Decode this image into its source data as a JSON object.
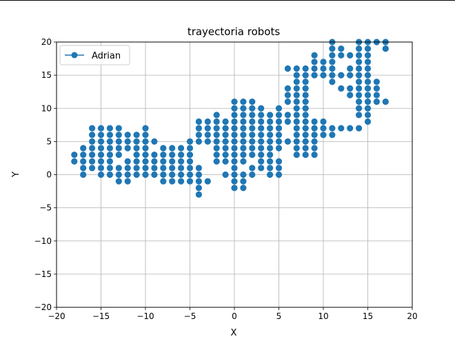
{
  "chart_data": {
    "type": "scatter",
    "title": "trayectoria robots",
    "xlabel": "X",
    "ylabel": "Y",
    "xlim": [
      -20,
      20
    ],
    "ylim": [
      -20,
      20
    ],
    "xticks": [
      -20,
      -15,
      -10,
      -5,
      0,
      5,
      10,
      15,
      20
    ],
    "yticks": [
      -20,
      -15,
      -10,
      -5,
      0,
      5,
      10,
      15,
      20
    ],
    "grid": true,
    "legend_position": "top-left",
    "color": "#1f77b4",
    "series": [
      {
        "name": "Adrian",
        "marker": "o",
        "points": [
          [
            -18,
            2
          ],
          [
            -18,
            3
          ],
          [
            -17,
            0
          ],
          [
            -17,
            1
          ],
          [
            -17,
            2
          ],
          [
            -17,
            3
          ],
          [
            -17,
            4
          ],
          [
            -16,
            1
          ],
          [
            -16,
            2
          ],
          [
            -16,
            3
          ],
          [
            -16,
            4
          ],
          [
            -16,
            5
          ],
          [
            -16,
            6
          ],
          [
            -16,
            7
          ],
          [
            -15,
            0
          ],
          [
            -15,
            1
          ],
          [
            -15,
            2
          ],
          [
            -15,
            3
          ],
          [
            -15,
            4
          ],
          [
            -15,
            5
          ],
          [
            -15,
            6
          ],
          [
            -15,
            7
          ],
          [
            -14,
            0
          ],
          [
            -14,
            1
          ],
          [
            -14,
            2
          ],
          [
            -14,
            3
          ],
          [
            -14,
            4
          ],
          [
            -14,
            5
          ],
          [
            -14,
            6
          ],
          [
            -14,
            7
          ],
          [
            -13,
            -1
          ],
          [
            -13,
            0
          ],
          [
            -13,
            1
          ],
          [
            -13,
            3
          ],
          [
            -13,
            4
          ],
          [
            -13,
            5
          ],
          [
            -13,
            6
          ],
          [
            -13,
            7
          ],
          [
            -12,
            -1
          ],
          [
            -12,
            0
          ],
          [
            -12,
            1
          ],
          [
            -12,
            2
          ],
          [
            -12,
            4
          ],
          [
            -12,
            5
          ],
          [
            -12,
            6
          ],
          [
            -11,
            0
          ],
          [
            -11,
            1
          ],
          [
            -11,
            2
          ],
          [
            -11,
            3
          ],
          [
            -11,
            4
          ],
          [
            -11,
            5
          ],
          [
            -11,
            6
          ],
          [
            -10,
            0
          ],
          [
            -10,
            1
          ],
          [
            -10,
            2
          ],
          [
            -10,
            3
          ],
          [
            -10,
            4
          ],
          [
            -10,
            5
          ],
          [
            -10,
            6
          ],
          [
            -10,
            7
          ],
          [
            -9,
            0
          ],
          [
            -9,
            1
          ],
          [
            -9,
            2
          ],
          [
            -9,
            3
          ],
          [
            -9,
            5
          ],
          [
            -8,
            -1
          ],
          [
            -8,
            0
          ],
          [
            -8,
            1
          ],
          [
            -8,
            2
          ],
          [
            -8,
            3
          ],
          [
            -8,
            4
          ],
          [
            -7,
            -1
          ],
          [
            -7,
            0
          ],
          [
            -7,
            1
          ],
          [
            -7,
            2
          ],
          [
            -7,
            3
          ],
          [
            -7,
            4
          ],
          [
            -6,
            -1
          ],
          [
            -6,
            0
          ],
          [
            -6,
            1
          ],
          [
            -6,
            2
          ],
          [
            -6,
            3
          ],
          [
            -6,
            4
          ],
          [
            -5,
            -1
          ],
          [
            -5,
            0
          ],
          [
            -5,
            1
          ],
          [
            -5,
            2
          ],
          [
            -5,
            3
          ],
          [
            -5,
            4
          ],
          [
            -5,
            5
          ],
          [
            -4,
            -3
          ],
          [
            -4,
            -2
          ],
          [
            -4,
            -1
          ],
          [
            -4,
            0
          ],
          [
            -4,
            1
          ],
          [
            -4,
            5
          ],
          [
            -4,
            6
          ],
          [
            -4,
            7
          ],
          [
            -4,
            8
          ],
          [
            -3,
            -1
          ],
          [
            -3,
            5
          ],
          [
            -3,
            6
          ],
          [
            -3,
            7
          ],
          [
            -3,
            8
          ],
          [
            -2,
            2
          ],
          [
            -2,
            3
          ],
          [
            -2,
            4
          ],
          [
            -2,
            5
          ],
          [
            -2,
            6
          ],
          [
            -2,
            7
          ],
          [
            -2,
            8
          ],
          [
            -2,
            9
          ],
          [
            -1,
            0
          ],
          [
            -1,
            2
          ],
          [
            -1,
            3
          ],
          [
            -1,
            4
          ],
          [
            -1,
            5
          ],
          [
            -1,
            6
          ],
          [
            -1,
            7
          ],
          [
            -1,
            8
          ],
          [
            0,
            -2
          ],
          [
            0,
            -1
          ],
          [
            0,
            0
          ],
          [
            0,
            1
          ],
          [
            0,
            2
          ],
          [
            0,
            3
          ],
          [
            0,
            4
          ],
          [
            0,
            5
          ],
          [
            0,
            6
          ],
          [
            0,
            7
          ],
          [
            0,
            8
          ],
          [
            0,
            9
          ],
          [
            0,
            10
          ],
          [
            0,
            11
          ],
          [
            1,
            -2
          ],
          [
            1,
            -1
          ],
          [
            1,
            0
          ],
          [
            1,
            2
          ],
          [
            1,
            3
          ],
          [
            1,
            4
          ],
          [
            1,
            5
          ],
          [
            1,
            6
          ],
          [
            1,
            7
          ],
          [
            1,
            8
          ],
          [
            1,
            9
          ],
          [
            1,
            10
          ],
          [
            1,
            11
          ],
          [
            2,
            0
          ],
          [
            2,
            1
          ],
          [
            2,
            3
          ],
          [
            2,
            4
          ],
          [
            2,
            5
          ],
          [
            2,
            6
          ],
          [
            2,
            7
          ],
          [
            2,
            8
          ],
          [
            2,
            9
          ],
          [
            2,
            10
          ],
          [
            2,
            11
          ],
          [
            3,
            1
          ],
          [
            3,
            2
          ],
          [
            3,
            3
          ],
          [
            3,
            4
          ],
          [
            3,
            5
          ],
          [
            3,
            6
          ],
          [
            3,
            7
          ],
          [
            3,
            8
          ],
          [
            3,
            9
          ],
          [
            3,
            10
          ],
          [
            4,
            0
          ],
          [
            4,
            1
          ],
          [
            4,
            2
          ],
          [
            4,
            3
          ],
          [
            4,
            4
          ],
          [
            4,
            5
          ],
          [
            4,
            6
          ],
          [
            4,
            7
          ],
          [
            4,
            8
          ],
          [
            4,
            9
          ],
          [
            5,
            0
          ],
          [
            5,
            1
          ],
          [
            5,
            2
          ],
          [
            5,
            4
          ],
          [
            5,
            5
          ],
          [
            5,
            6
          ],
          [
            5,
            7
          ],
          [
            5,
            8
          ],
          [
            5,
            9
          ],
          [
            5,
            10
          ],
          [
            6,
            5
          ],
          [
            6,
            8
          ],
          [
            6,
            9
          ],
          [
            6,
            11
          ],
          [
            6,
            12
          ],
          [
            6,
            13
          ],
          [
            6,
            16
          ],
          [
            7,
            3
          ],
          [
            7,
            4
          ],
          [
            7,
            5
          ],
          [
            7,
            6
          ],
          [
            7,
            7
          ],
          [
            7,
            8
          ],
          [
            7,
            9
          ],
          [
            7,
            10
          ],
          [
            7,
            11
          ],
          [
            7,
            12
          ],
          [
            7,
            13
          ],
          [
            7,
            14
          ],
          [
            7,
            15
          ],
          [
            7,
            16
          ],
          [
            8,
            3
          ],
          [
            8,
            4
          ],
          [
            8,
            5
          ],
          [
            8,
            6
          ],
          [
            8,
            7
          ],
          [
            8,
            8
          ],
          [
            8,
            9
          ],
          [
            8,
            10
          ],
          [
            8,
            11
          ],
          [
            8,
            12
          ],
          [
            8,
            13
          ],
          [
            8,
            14
          ],
          [
            8,
            15
          ],
          [
            8,
            16
          ],
          [
            9,
            3
          ],
          [
            9,
            4
          ],
          [
            9,
            5
          ],
          [
            9,
            6
          ],
          [
            9,
            7
          ],
          [
            9,
            8
          ],
          [
            9,
            15
          ],
          [
            9,
            16
          ],
          [
            9,
            17
          ],
          [
            9,
            18
          ],
          [
            10,
            6
          ],
          [
            10,
            7
          ],
          [
            10,
            8
          ],
          [
            10,
            15
          ],
          [
            10,
            16
          ],
          [
            10,
            17
          ],
          [
            11,
            6
          ],
          [
            11,
            7
          ],
          [
            11,
            14
          ],
          [
            11,
            15
          ],
          [
            11,
            16
          ],
          [
            11,
            17
          ],
          [
            11,
            18
          ],
          [
            11,
            19
          ],
          [
            11,
            20
          ],
          [
            12,
            7
          ],
          [
            12,
            13
          ],
          [
            12,
            15
          ],
          [
            12,
            18
          ],
          [
            12,
            19
          ],
          [
            13,
            7
          ],
          [
            13,
            12
          ],
          [
            13,
            13
          ],
          [
            13,
            15
          ],
          [
            13,
            16
          ],
          [
            13,
            18
          ],
          [
            14,
            7
          ],
          [
            14,
            9
          ],
          [
            14,
            10
          ],
          [
            14,
            11
          ],
          [
            14,
            12
          ],
          [
            14,
            13
          ],
          [
            14,
            14
          ],
          [
            14,
            15
          ],
          [
            14,
            16
          ],
          [
            14,
            17
          ],
          [
            14,
            18
          ],
          [
            14,
            19
          ],
          [
            14,
            20
          ],
          [
            15,
            8
          ],
          [
            15,
            9
          ],
          [
            15,
            10
          ],
          [
            15,
            11
          ],
          [
            15,
            12
          ],
          [
            15,
            13
          ],
          [
            15,
            14
          ],
          [
            15,
            15
          ],
          [
            15,
            16
          ],
          [
            15,
            17
          ],
          [
            15,
            18
          ],
          [
            15,
            19
          ],
          [
            15,
            20
          ],
          [
            16,
            11
          ],
          [
            16,
            12
          ],
          [
            16,
            13
          ],
          [
            16,
            14
          ],
          [
            16,
            20
          ],
          [
            17,
            11
          ],
          [
            17,
            19
          ],
          [
            17,
            20
          ]
        ]
      }
    ]
  }
}
